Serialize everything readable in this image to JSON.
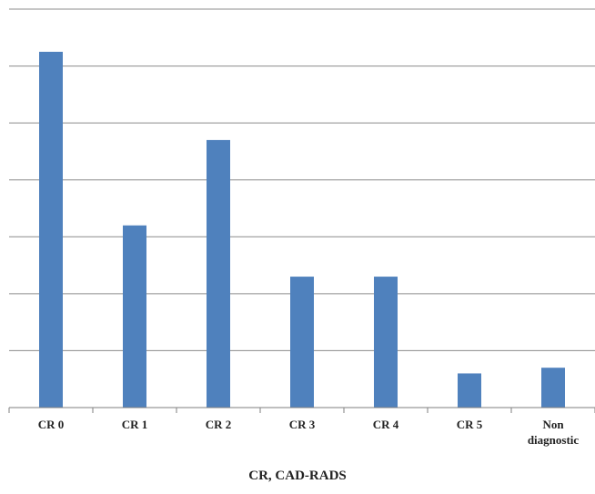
{
  "chart_data": {
    "type": "bar",
    "categories": [
      "CR 0",
      "CR 1",
      "CR 2",
      "CR 3",
      "CR 4",
      "CR 5",
      "Non diagnostic"
    ],
    "category_lines": [
      [
        "CR 0"
      ],
      [
        "CR 1"
      ],
      [
        "CR 2"
      ],
      [
        "CR 3"
      ],
      [
        "CR 4"
      ],
      [
        "CR 5"
      ],
      [
        "Non",
        "diagnostic"
      ]
    ],
    "values": [
      6.25,
      3.2,
      4.7,
      2.3,
      2.3,
      0.6,
      0.7
    ],
    "ylim": [
      0,
      7
    ],
    "y_grid_step": 1,
    "y_tick_labels_visible": false,
    "grid": true,
    "xlabel": "CR, CAD-RADS",
    "ylabel": "",
    "title": "",
    "colors": {
      "bar": "#4F81BD",
      "grid": "#8C8C8C",
      "axis": "#7F7F7F",
      "text": "#222222"
    }
  }
}
